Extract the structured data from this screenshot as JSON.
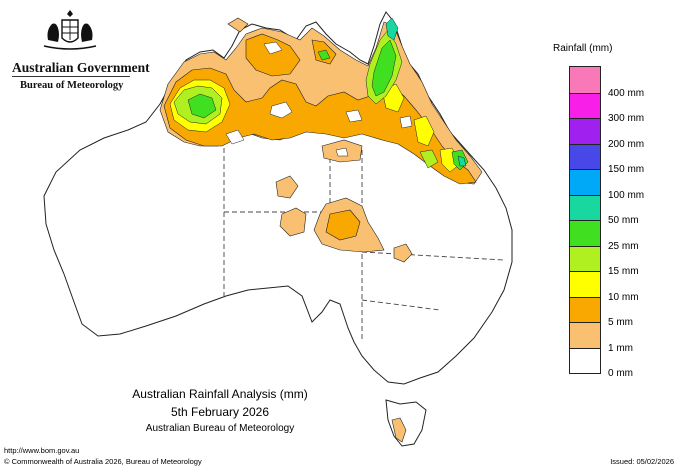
{
  "government": {
    "name": "Australian Government",
    "agency": "Bureau of Meteorology"
  },
  "legend": {
    "title": "Rainfall (mm)",
    "items": [
      {
        "label": "400 mm",
        "color": "#f878b8"
      },
      {
        "label": "300 mm",
        "color": "#f820e8"
      },
      {
        "label": "200 mm",
        "color": "#a020f0"
      },
      {
        "label": "150 mm",
        "color": "#4848e8"
      },
      {
        "label": "100 mm",
        "color": "#00a8f8"
      },
      {
        "label": "50 mm",
        "color": "#18d8a0"
      },
      {
        "label": "25 mm",
        "color": "#40e020"
      },
      {
        "label": "15 mm",
        "color": "#b0f020"
      },
      {
        "label": "10 mm",
        "color": "#ffff00"
      },
      {
        "label": "5 mm",
        "color": "#f8a800"
      },
      {
        "label": "1 mm",
        "color": "#f8c070"
      },
      {
        "label": "0 mm",
        "color": "#ffffff"
      }
    ]
  },
  "map": {
    "title": "Australian Rainfall Analysis (mm)",
    "date": "5th February 2026",
    "organisation": "Australian Bureau of Meteorology"
  },
  "footer": {
    "url": "http://www.bom.gov.au",
    "copyright": "© Commonwealth of Australia 2026, Bureau of Meteorology",
    "issued": "Issued: 05/02/2026"
  }
}
